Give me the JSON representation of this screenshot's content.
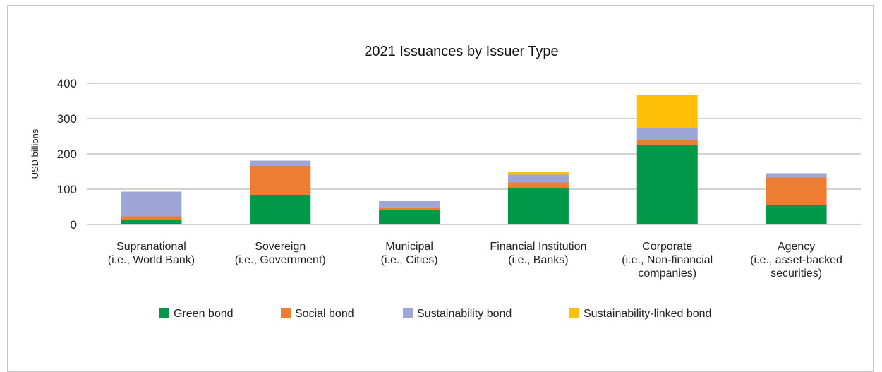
{
  "chart_data": {
    "type": "bar",
    "stacked": true,
    "title": "2021 Issuances by Issuer Type",
    "xlabel": "",
    "ylabel": "USD billions",
    "ylim": [
      0,
      400
    ],
    "yticks": [
      0,
      100,
      200,
      300,
      400
    ],
    "grid": true,
    "legend_position": "bottom",
    "categories": [
      [
        "Supranational",
        "(i.e., World Bank)"
      ],
      [
        "Sovereign",
        "(i.e., Government)"
      ],
      [
        "Municipal",
        "(i.e., Cities)"
      ],
      [
        "Financial Institution",
        "(i.e., Banks)"
      ],
      [
        "Corporate",
        "(i.e., Non-financial",
        "companies)"
      ],
      [
        "Agency",
        "(i.e., asset-backed",
        "securities)"
      ]
    ],
    "series": [
      {
        "name": "Green bond",
        "color": "#00994a",
        "values": [
          12,
          84,
          40,
          102,
          226,
          56
        ]
      },
      {
        "name": "Social bond",
        "color": "#ed7d31",
        "values": [
          11,
          82,
          8,
          17,
          12,
          77
        ]
      },
      {
        "name": "Sustainability bond",
        "color": "#9da6d6",
        "values": [
          70,
          15,
          18,
          22,
          36,
          12
        ]
      },
      {
        "name": "Sustainability-linked bond",
        "color": "#ffc107",
        "values": [
          0,
          0,
          0,
          8,
          92,
          0
        ]
      }
    ]
  }
}
